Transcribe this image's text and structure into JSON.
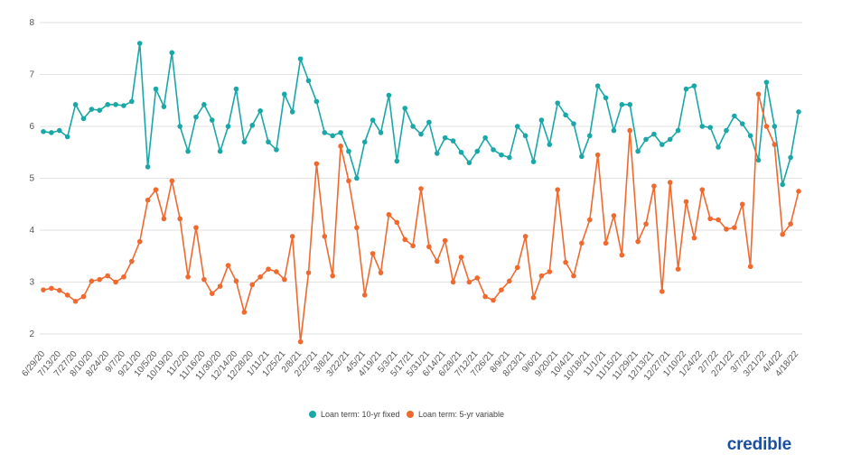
{
  "brand": "credible",
  "colors": {
    "ten_year": "#1aa7a7",
    "five_year": "#f0692e",
    "grid": "#e2e2e2"
  },
  "chart_data": {
    "type": "line",
    "title": "",
    "xlabel": "",
    "ylabel": "",
    "ylim": [
      2,
      8
    ],
    "yticks": [
      2,
      3,
      4,
      5,
      6,
      7,
      8
    ],
    "grid": true,
    "legend": "bottom-center",
    "x_tick_labels": [
      "6/29/20",
      "7/13/20",
      "7/27/20",
      "8/10/20",
      "8/24/20",
      "9/7/20",
      "9/21/20",
      "10/5/20",
      "10/19/20",
      "11/2/20",
      "11/16/20",
      "11/30/20",
      "12/14/20",
      "12/28/20",
      "1/11/21",
      "1/25/21",
      "2/8/21",
      "2/22/21",
      "3/8/21",
      "3/22/21",
      "4/5/21",
      "4/19/21",
      "5/3/21",
      "5/17/21",
      "5/31/21",
      "6/14/21",
      "6/28/21",
      "7/12/21",
      "7/26/21",
      "8/9/21",
      "8/23/21",
      "9/6/21",
      "9/20/21",
      "10/4/21",
      "10/18/21",
      "11/1/21",
      "11/15/21",
      "11/29/21",
      "12/13/21",
      "12/27/21",
      "1/10/22",
      "1/24/22",
      "2/7/22",
      "2/21/22",
      "3/7/22",
      "3/21/22",
      "4/4/22",
      "4/18/22"
    ],
    "series": [
      {
        "name": "Loan term: 10-yr fixed",
        "values": [
          5.9,
          5.88,
          5.92,
          5.8,
          6.42,
          6.15,
          6.33,
          6.31,
          6.42,
          6.42,
          6.4,
          6.48,
          7.6,
          5.22,
          6.72,
          6.38,
          7.42,
          6.0,
          5.52,
          6.18,
          6.42,
          6.12,
          5.52,
          6.0,
          6.72,
          5.7,
          6.02,
          6.3,
          5.7,
          5.55,
          6.62,
          6.28,
          7.3,
          6.88,
          6.48,
          5.88,
          5.82,
          5.88,
          5.52,
          5.0,
          5.7,
          6.12,
          5.88,
          6.6,
          5.33,
          6.35,
          6.0,
          5.85,
          6.08,
          5.48,
          5.78,
          5.72,
          5.5,
          5.3,
          5.52,
          5.78,
          5.55,
          5.45,
          5.4,
          6.0,
          5.82,
          5.32,
          6.12,
          5.65,
          6.45,
          6.22,
          6.05,
          5.42,
          5.82,
          6.78,
          6.55,
          5.92,
          6.42,
          6.42,
          5.52,
          5.75,
          5.85,
          5.65,
          5.75,
          5.92,
          6.72,
          6.78,
          6.0,
          5.98,
          5.6,
          5.92,
          6.2,
          6.05,
          5.82,
          5.35,
          6.85,
          6.0,
          4.88,
          5.4,
          6.28
        ]
      },
      {
        "name": "Loan term: 5-yr variable",
        "values": [
          2.85,
          2.88,
          2.84,
          2.75,
          2.63,
          2.72,
          3.02,
          3.05,
          3.12,
          3.0,
          3.1,
          3.4,
          3.78,
          4.58,
          4.78,
          4.22,
          4.95,
          4.22,
          3.1,
          4.05,
          3.05,
          2.78,
          2.92,
          3.32,
          3.02,
          2.42,
          2.95,
          3.1,
          3.25,
          3.2,
          3.05,
          3.88,
          1.85,
          3.18,
          5.28,
          3.88,
          3.12,
          5.62,
          4.95,
          4.05,
          2.75,
          3.55,
          3.18,
          4.3,
          4.15,
          3.82,
          3.7,
          4.8,
          3.68,
          3.4,
          3.8,
          3.0,
          3.48,
          3.0,
          3.08,
          2.72,
          2.65,
          2.85,
          3.02,
          3.28,
          3.88,
          2.7,
          3.12,
          3.2,
          4.78,
          3.38,
          3.12,
          3.75,
          4.2,
          5.45,
          3.75,
          4.28,
          3.52,
          5.92,
          3.78,
          4.12,
          4.85,
          2.82,
          4.92,
          3.25,
          4.55,
          3.85,
          4.78,
          4.22,
          4.2,
          4.02,
          4.05,
          4.5,
          3.3,
          6.62,
          6.0,
          5.65,
          3.92,
          4.12,
          4.75
        ]
      }
    ]
  }
}
